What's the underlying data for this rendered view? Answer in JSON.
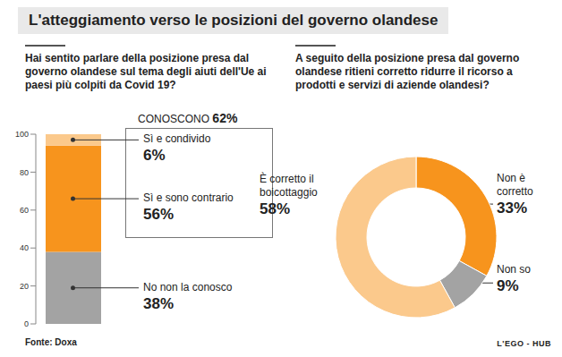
{
  "title": "L'atteggiamento verso le posizioni del governo olandese",
  "source": "Fonte: Doxa",
  "credit": "L'EGO - HUB",
  "chart_data": [
    {
      "type": "bar",
      "title": "Hai sentito parlare della posizione presa dal governo olandese sul tema degli aiuti dell'Ue ai paesi più colpiti da Covid 19?",
      "categories": [
        null
      ],
      "series": [
        {
          "name": "No non la conosco",
          "color": "#a3a3a3",
          "values": [
            38
          ],
          "value_labels": [
            "38%"
          ]
        },
        {
          "name": "Sì e sono contrario",
          "color": "#f7941d",
          "values": [
            56
          ],
          "value_labels": [
            "56%"
          ]
        },
        {
          "name": "Sì e condivido",
          "color": "#fbc98c",
          "values": [
            6
          ],
          "value_labels": [
            "6%"
          ]
        }
      ],
      "stacked": true,
      "ylim": [
        0,
        100
      ],
      "yticks": [
        0,
        20,
        40,
        60,
        80,
        100
      ],
      "tick_labels": "y",
      "annotation": "CONOSCONO 62%"
    },
    {
      "type": "pie",
      "title": "A seguito della posizione presa dal governo olandese ritieni corretto ridurre il ricorso a prodotti e servizi di aziende olandesi?",
      "categories": [
        "Non è corretto",
        "Non so",
        "È corretto il boicottaggio"
      ],
      "values": [
        33,
        9,
        58
      ],
      "value_labels": [
        "33%",
        "9%",
        "58%"
      ],
      "colors": [
        "#f7941d",
        "#a3a3a3",
        "#fbc98c"
      ]
    }
  ]
}
